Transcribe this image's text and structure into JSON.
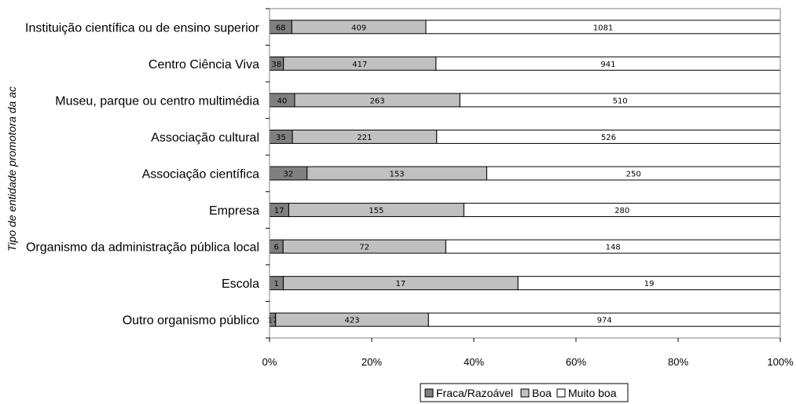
{
  "chart_data": {
    "type": "bar",
    "orientation": "horizontal",
    "stacking": "percent",
    "title": "",
    "ylabel": "Tipo de entidade promotora da ac",
    "xlabel": "",
    "xlim": [
      0,
      100
    ],
    "x_ticks": [
      "0%",
      "20%",
      "40%",
      "60%",
      "80%",
      "100%"
    ],
    "grid": false,
    "legend_position": "bottom",
    "categories": [
      "Instituição científica ou de ensino superior",
      "Centro Ciência Viva",
      "Museu, parque ou centro multimédia",
      "Associação cultural",
      "Associação científica",
      "Empresa",
      "Organismo da administração pública local",
      "Escola",
      "Outro organismo público"
    ],
    "series": [
      {
        "name": "Fraca/Razoável",
        "color": "#808080",
        "values": [
          68,
          38,
          40,
          35,
          32,
          17,
          6,
          1,
          17
        ]
      },
      {
        "name": "Boa",
        "color": "#c0c0c0",
        "values": [
          409,
          417,
          263,
          221,
          153,
          155,
          72,
          17,
          423
        ]
      },
      {
        "name": "Muito boa",
        "color": "#ffffff",
        "values": [
          1081,
          941,
          510,
          526,
          250,
          280,
          148,
          19,
          974
        ]
      }
    ]
  }
}
